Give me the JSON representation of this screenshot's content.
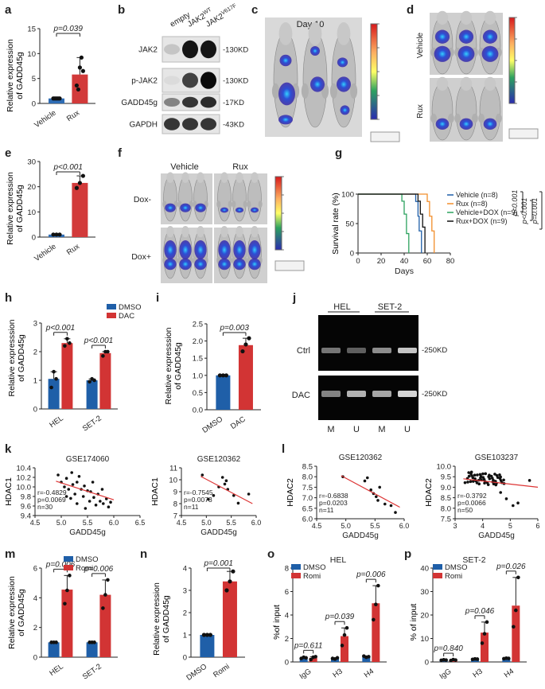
{
  "colors": {
    "vehicle_bar": "#2f6db5",
    "rux_bar": "#d23a3a",
    "dmso": "#1f5fa8",
    "treat": "#d23434",
    "axis": "#222222",
    "green": "#2ca25f",
    "orange": "#f28e2b",
    "black": "#111111",
    "trend": "#d33"
  },
  "panel_labels": [
    "a",
    "b",
    "c",
    "d",
    "e",
    "f",
    "g",
    "h",
    "i",
    "j",
    "k",
    "l",
    "m",
    "n",
    "o",
    "p"
  ],
  "panels": {
    "a": {
      "ylabel": "Relative expression\nof GADD45g",
      "categories": [
        "Vehicle",
        "Rux"
      ],
      "values": [
        1,
        5.8
      ],
      "yticks": [
        "0",
        "5",
        "10",
        "15"
      ],
      "ymax": 15,
      "p": "p=0.039",
      "points": [
        [
          1,
          1,
          1,
          1,
          1
        ],
        [
          3.6,
          2.8,
          7.2,
          9.2,
          6.5
        ]
      ]
    },
    "b": {
      "lanes": [
        "empty",
        "JAK2WT",
        "JAK2V617F"
      ],
      "rows": [
        {
          "label": "JAK2",
          "size": "-130KD"
        },
        {
          "label": "p-JAK2",
          "size": "-130KD"
        },
        {
          "label": "GADD45g",
          "size": "-17KD"
        },
        {
          "label": "GAPDH",
          "size": "-43KD"
        }
      ]
    },
    "c": {
      "title": "Day 10"
    },
    "d": {
      "row_labels": [
        "Vehicle",
        "Rux"
      ]
    },
    "e": {
      "ylabel": "Relative expression\nof GADD45g",
      "categories": [
        "Vehicle",
        "Rux"
      ],
      "values": [
        1,
        21.5
      ],
      "yticks": [
        "0",
        "10",
        "20",
        "30"
      ],
      "ymax": 30,
      "p": "p<0.001",
      "points": [
        [
          1,
          1,
          1
        ],
        [
          19.5,
          21.5,
          24.3
        ]
      ]
    },
    "f": {
      "col_labels": [
        "Vehicle",
        "Rux"
      ],
      "row_labels": [
        "Dox-",
        "Dox+"
      ]
    },
    "g": {
      "ylabel": "Survival rate (%)",
      "xlabel": "Days",
      "xticks": [
        "0",
        "20",
        "40",
        "60",
        "80"
      ],
      "yticks": [
        "0",
        "50",
        "100"
      ],
      "legend": [
        "Vehicle (n=8)",
        "Rux (n=8)",
        "Vehicle+DOX (n=9)",
        "Rux+DOX (n=9)"
      ],
      "pvals": [
        "p<0.001",
        "p<0.001",
        "p=0.001"
      ]
    },
    "h": {
      "ylabel": "Relative expresssion\nof GADD45g",
      "categories": [
        "HEL",
        "SET-2"
      ],
      "legend": [
        "DMSO",
        "DAC"
      ],
      "values": [
        [
          1.05,
          2.3
        ],
        [
          1.0,
          1.95
        ]
      ],
      "yticks": [
        "0",
        "1",
        "2",
        "3"
      ],
      "ymax": 3,
      "p": [
        "p<0.001",
        "p<0.001"
      ],
      "points": [
        [
          [
            0.75,
            1.3,
            1.05
          ],
          [
            2.2,
            2.45,
            2.3
          ]
        ],
        [
          [
            0.95,
            1.05,
            1.0
          ],
          [
            1.85,
            2.0,
            2.0
          ]
        ]
      ]
    },
    "i": {
      "ylabel": "Relative expresssion\nof GADD45g",
      "categories": [
        "DMSO",
        "DAC"
      ],
      "values": [
        1,
        1.88
      ],
      "yticks": [
        "0.0",
        "0.5",
        "1.0",
        "1.5",
        "2.0",
        "2.5"
      ],
      "ymax": 2.5,
      "p": "p=0.003",
      "points": [
        [
          1,
          1,
          1
        ],
        [
          1.7,
          1.9,
          2.08
        ]
      ]
    },
    "j": {
      "col_labels": [
        "HEL",
        "SET-2"
      ],
      "row_labels": [
        "Ctrl",
        "DAC"
      ],
      "sizes": [
        "-250KD",
        "-250KD"
      ],
      "lane_labels": [
        "M",
        "U",
        "M",
        "U"
      ]
    },
    "k": {
      "charts": [
        {
          "title": "GSE174060",
          "ylabel": "HDAC1",
          "xlabel": "GADD45g",
          "xticks": [
            "4.5",
            "5.0",
            "5.5",
            "6.0",
            "6.5"
          ],
          "yticks": [
            "9.4",
            "9.6",
            "9.8",
            "10.0",
            "10.2",
            "10.4"
          ],
          "stats": [
            "r=-0.4829",
            "p=0.0069",
            "n=30"
          ]
        },
        {
          "title": "GSE120362",
          "ylabel": "HDAC1",
          "xlabel": "GADD45g",
          "xticks": [
            "4.5",
            "5.0",
            "5.5",
            "6.0"
          ],
          "yticks": [
            "7",
            "8",
            "9",
            "10",
            "11"
          ],
          "stats": [
            "r=-0.7545",
            "p=0.0073",
            "n=11"
          ]
        }
      ]
    },
    "l": {
      "charts": [
        {
          "title": "GSE120362",
          "ylabel": "HDAC2",
          "xlabel": "GADD45g",
          "xticks": [
            "4.5",
            "5.0",
            "5.5",
            "6.0"
          ],
          "yticks": [
            "6.0",
            "6.5",
            "7.0",
            "7.5",
            "8.0",
            "8.5"
          ],
          "stats": [
            "r=-0.6838",
            "p=0.0203",
            "n=11"
          ]
        },
        {
          "title": "GSE103237",
          "ylabel": "HDAC2",
          "xlabel": "GADD45g",
          "xticks": [
            "3",
            "4",
            "5",
            "6"
          ],
          "yticks": [
            "7.5",
            "8.0",
            "8.5",
            "9.0",
            "9.5",
            "10.0"
          ],
          "stats": [
            "r=-0.3792",
            "p=0.0066",
            "n=50"
          ]
        }
      ]
    },
    "m": {
      "ylabel": "Relative expression\nof GADD45g",
      "categories": [
        "HEL",
        "SET-2"
      ],
      "legend": [
        "DMSO",
        "Romi"
      ],
      "values": [
        [
          1.0,
          4.55
        ],
        [
          1.0,
          4.2
        ]
      ],
      "yticks": [
        "0",
        "2",
        "4",
        "6"
      ],
      "ymax": 6,
      "p": [
        "p=0.006",
        "p=0.006"
      ],
      "points": [
        [
          [
            1,
            1,
            1
          ],
          [
            3.6,
            4.5,
            5.5
          ]
        ],
        [
          [
            1,
            1,
            1
          ],
          [
            3.3,
            4.2,
            5.2
          ]
        ]
      ]
    },
    "n": {
      "ylabel": "Relative expression\nof GADD45g",
      "categories": [
        "DMSO",
        "Romi"
      ],
      "values": [
        1,
        3.4
      ],
      "yticks": [
        "0",
        "1",
        "2",
        "3",
        "4"
      ],
      "ymax": 4,
      "p": "p=0.001",
      "points": [
        [
          1,
          1,
          1
        ],
        [
          3.0,
          3.4,
          3.85
        ]
      ]
    },
    "o": {
      "title": "HEL",
      "ylabel": "%of input",
      "categories": [
        "IgG",
        "H3",
        "H4"
      ],
      "legend": [
        "DMSO",
        "Romi"
      ],
      "values": [
        [
          0.35,
          0.35
        ],
        [
          0.3,
          2.2
        ],
        [
          0.45,
          5.0
        ]
      ],
      "yticks": [
        "0",
        "2",
        "4",
        "6",
        "8"
      ],
      "ymax": 8,
      "p": [
        "p=0.611",
        "p=0.039",
        "p=0.006"
      ],
      "points": [
        [
          [
            0.3,
            0.4,
            0.35
          ],
          [
            0.2,
            0.4,
            0.45
          ]
        ],
        [
          [
            0.3,
            0.25,
            0.35
          ],
          [
            1.4,
            2.3,
            2.9
          ]
        ],
        [
          [
            0.5,
            0.4,
            0.45
          ],
          [
            3.6,
            4.9,
            6.5
          ]
        ]
      ]
    },
    "p": {
      "title": "SET-2",
      "ylabel": "% of input",
      "categories": [
        "IgG",
        "H3",
        "H4"
      ],
      "legend": [
        "DMSO",
        "Romi"
      ],
      "values": [
        [
          0.8,
          0.8
        ],
        [
          1.2,
          12.5
        ],
        [
          1.5,
          24
        ]
      ],
      "yticks": [
        "0",
        "10",
        "20",
        "30",
        "40"
      ],
      "ymax": 40,
      "p": [
        "p=0.840",
        "p=0.046",
        "p=0.026"
      ],
      "points": [
        [
          [
            0.7,
            0.9,
            0.8
          ],
          [
            0.6,
            1.0,
            0.8
          ]
        ],
        [
          [
            1.1,
            1.3,
            1.2
          ],
          [
            8,
            12,
            17
          ]
        ],
        [
          [
            1.4,
            1.6,
            1.5
          ],
          [
            15,
            22,
            36
          ]
        ]
      ]
    }
  }
}
